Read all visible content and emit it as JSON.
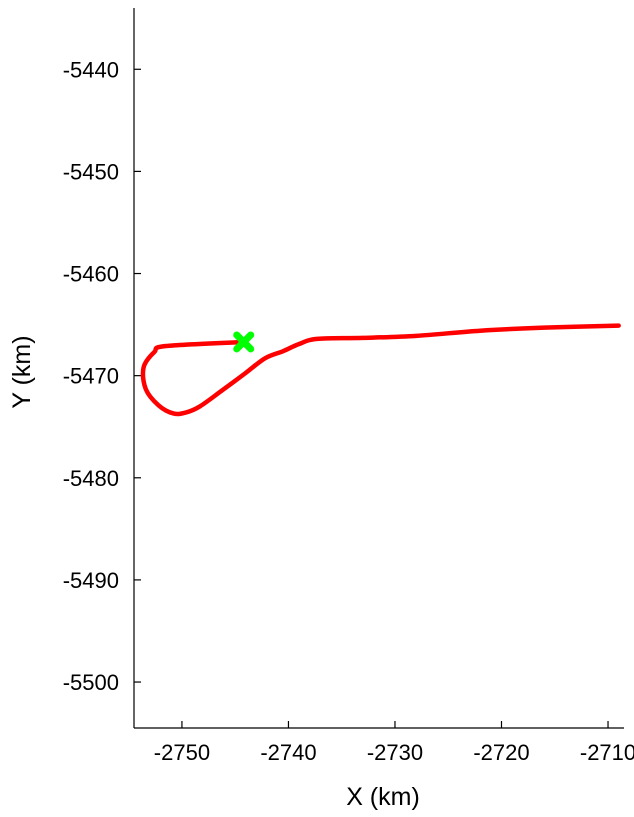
{
  "chart_data": {
    "type": "line",
    "title": "",
    "xlabel": "X (km)",
    "ylabel": "Y (km)",
    "xlim": [
      -2754.5,
      -2708.5
    ],
    "ylim": [
      -5504.5,
      -5434.0
    ],
    "x_ticks": [
      -2750,
      -2740,
      -2730,
      -2720,
      -2710
    ],
    "y_ticks": [
      -5440,
      -5450,
      -5460,
      -5470,
      -5480,
      -5490,
      -5500
    ],
    "x_tick_labels": [
      "-2750",
      "-2740",
      "-2730",
      "-2720",
      "-2710"
    ],
    "y_tick_labels": [
      "-5440",
      "-5450",
      "-5460",
      "-5470",
      "-5480",
      "-5490",
      "-5500"
    ],
    "grid": false,
    "series": [
      {
        "color": "#ff0000",
        "x": [
          -2744.2,
          -2751.5,
          -2752.6,
          -2753.6,
          -2753.4,
          -2752.2,
          -2750.8,
          -2749.6,
          -2748.3,
          -2746.3,
          -2744.1,
          -2742.2,
          -2740.5,
          -2739.0,
          -2737.3,
          -2733.0,
          -2728.0,
          -2722.0,
          -2716.0,
          -2709.0
        ],
        "y": [
          -5466.7,
          -5467.1,
          -5467.7,
          -5469.2,
          -5471.3,
          -5472.9,
          -5473.7,
          -5473.6,
          -5473.0,
          -5471.5,
          -5469.8,
          -5468.3,
          -5467.6,
          -5466.9,
          -5466.4,
          -5466.3,
          -5466.1,
          -5465.6,
          -5465.3,
          -5465.1
        ]
      }
    ],
    "markers": [
      {
        "shape": "x",
        "color": "#00ff00",
        "x": -2744.2,
        "y": -5466.7
      }
    ]
  }
}
